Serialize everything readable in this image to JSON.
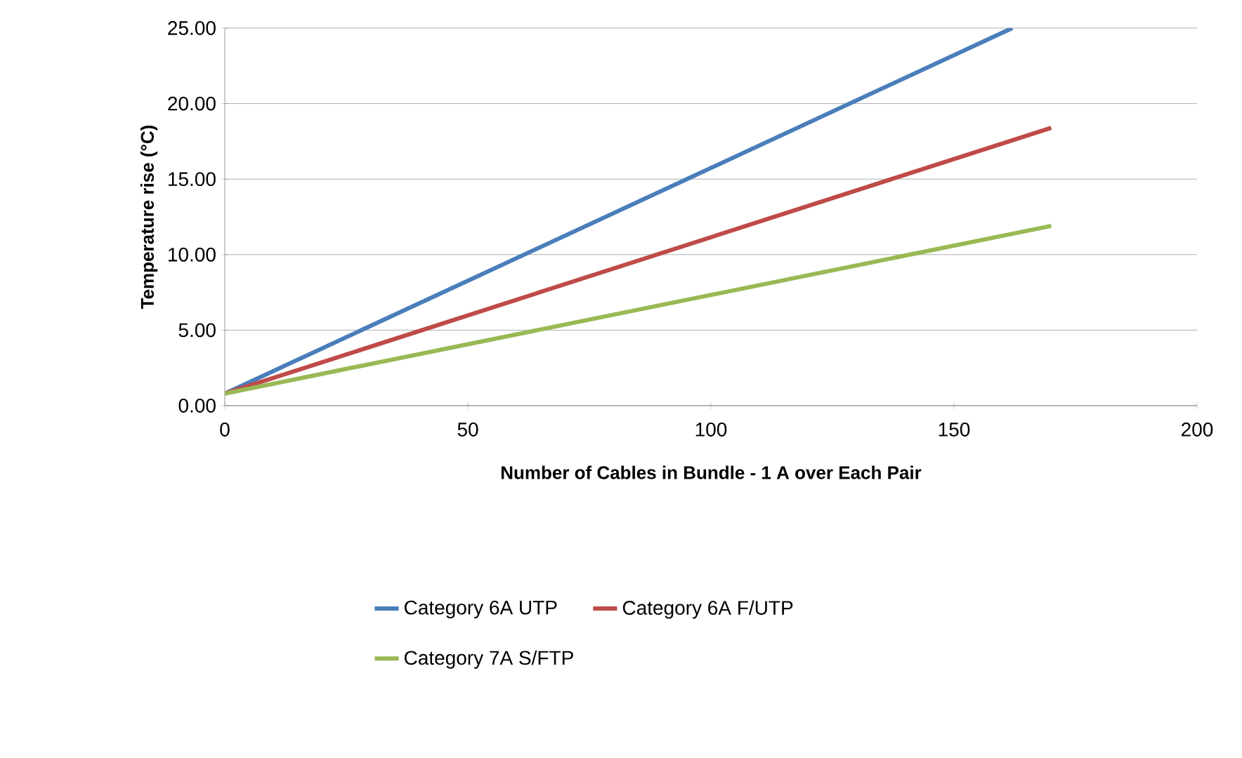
{
  "chart_data": {
    "type": "line",
    "xlabel": "Number of Cables in Bundle - 1 A over Each Pair",
    "ylabel": "Temperature rise (°C)",
    "xlim": [
      0,
      200
    ],
    "xticks": [
      0,
      50,
      100,
      150,
      200
    ],
    "ylim": [
      0,
      25
    ],
    "yticks": [
      {
        "value": 0,
        "label": "0.00"
      },
      {
        "value": 5,
        "label": "5.00"
      },
      {
        "value": 10,
        "label": "10.00"
      },
      {
        "value": 15,
        "label": "15.00"
      },
      {
        "value": 20,
        "label": "20.00"
      },
      {
        "value": 25,
        "label": "25.00"
      }
    ],
    "grid": "y",
    "legend": "bottom",
    "marker": "none",
    "line_style": "solid",
    "series": [
      {
        "name": "Category 6A UTP",
        "color": "#4a7ebb",
        "x": [
          0,
          162
        ],
        "values": [
          0.8,
          25
        ]
      },
      {
        "name": "Category 6A F/UTP",
        "color": "#be4b48",
        "x": [
          0,
          170
        ],
        "values": [
          0.8,
          18.4
        ]
      },
      {
        "name": "Category 7A S/FTP",
        "color": "#98b954",
        "x": [
          0,
          170
        ],
        "values": [
          0.8,
          11.9
        ]
      }
    ]
  }
}
